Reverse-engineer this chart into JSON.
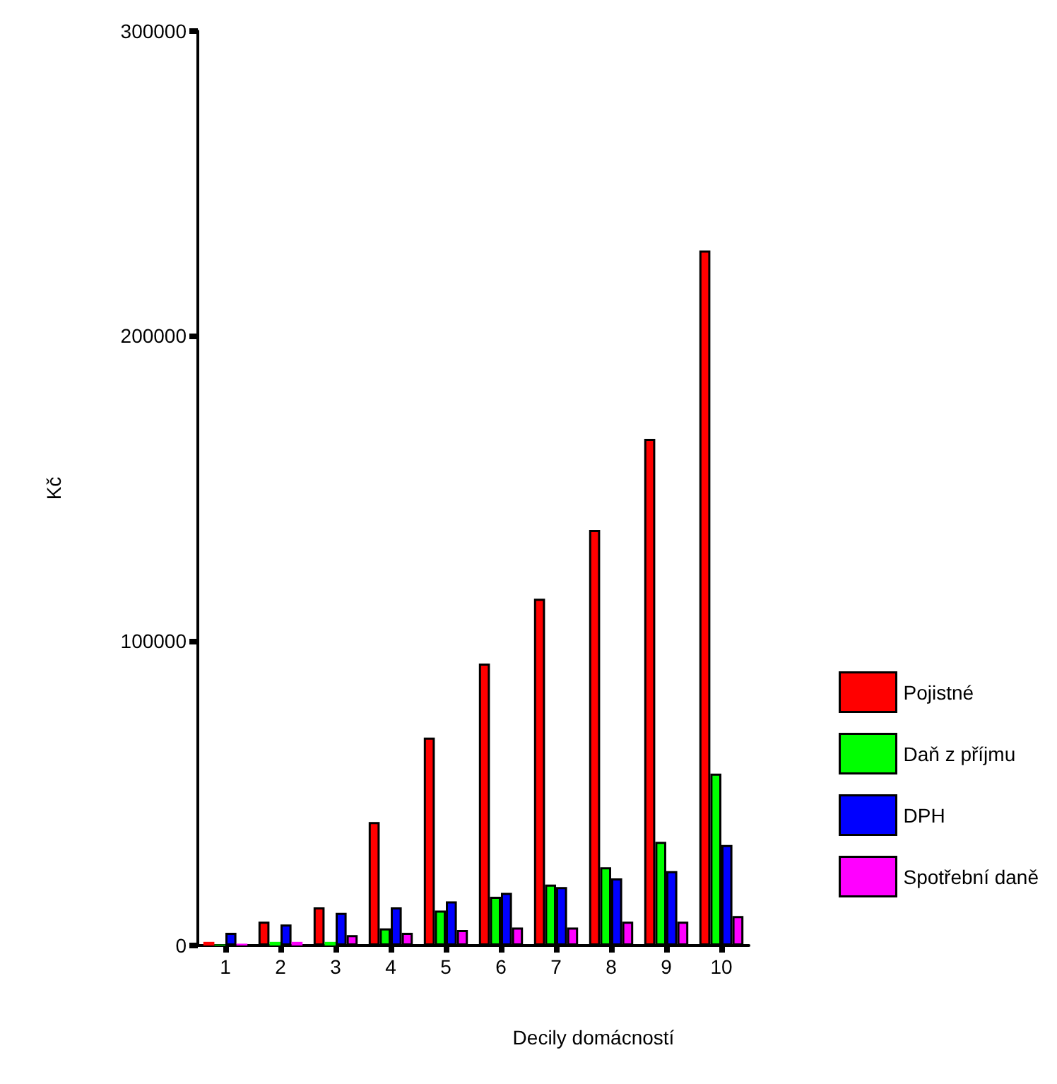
{
  "chart_data": {
    "type": "bar",
    "xlabel": "Decily domácností",
    "ylabel": "Kč",
    "categories": [
      "1",
      "2",
      "3",
      "4",
      "5",
      "6",
      "7",
      "8",
      "9",
      "10"
    ],
    "series": [
      {
        "name": "Pojistné",
        "color": "#ff0000",
        "values": [
          1200,
          7800,
          12500,
          40500,
          68200,
          92500,
          113800,
          136300,
          166200,
          228000
        ]
      },
      {
        "name": "Daň z příjmu",
        "color": "#00ff00",
        "values": [
          300,
          1200,
          1200,
          5600,
          11500,
          16000,
          20000,
          25700,
          34000,
          56400
        ]
      },
      {
        "name": "DPH",
        "color": "#0000ff",
        "values": [
          4200,
          6900,
          10700,
          12500,
          14500,
          17300,
          19200,
          22000,
          24400,
          33000
        ]
      },
      {
        "name": "Spotřební daně",
        "color": "#ff00ff",
        "values": [
          600,
          1200,
          3400,
          4200,
          5100,
          5900,
          5900,
          7800,
          7800,
          9700
        ]
      }
    ],
    "ylim": [
      0,
      300000
    ],
    "yticks": [
      0,
      100000,
      200000,
      300000
    ],
    "grid": false,
    "legend": "right"
  }
}
